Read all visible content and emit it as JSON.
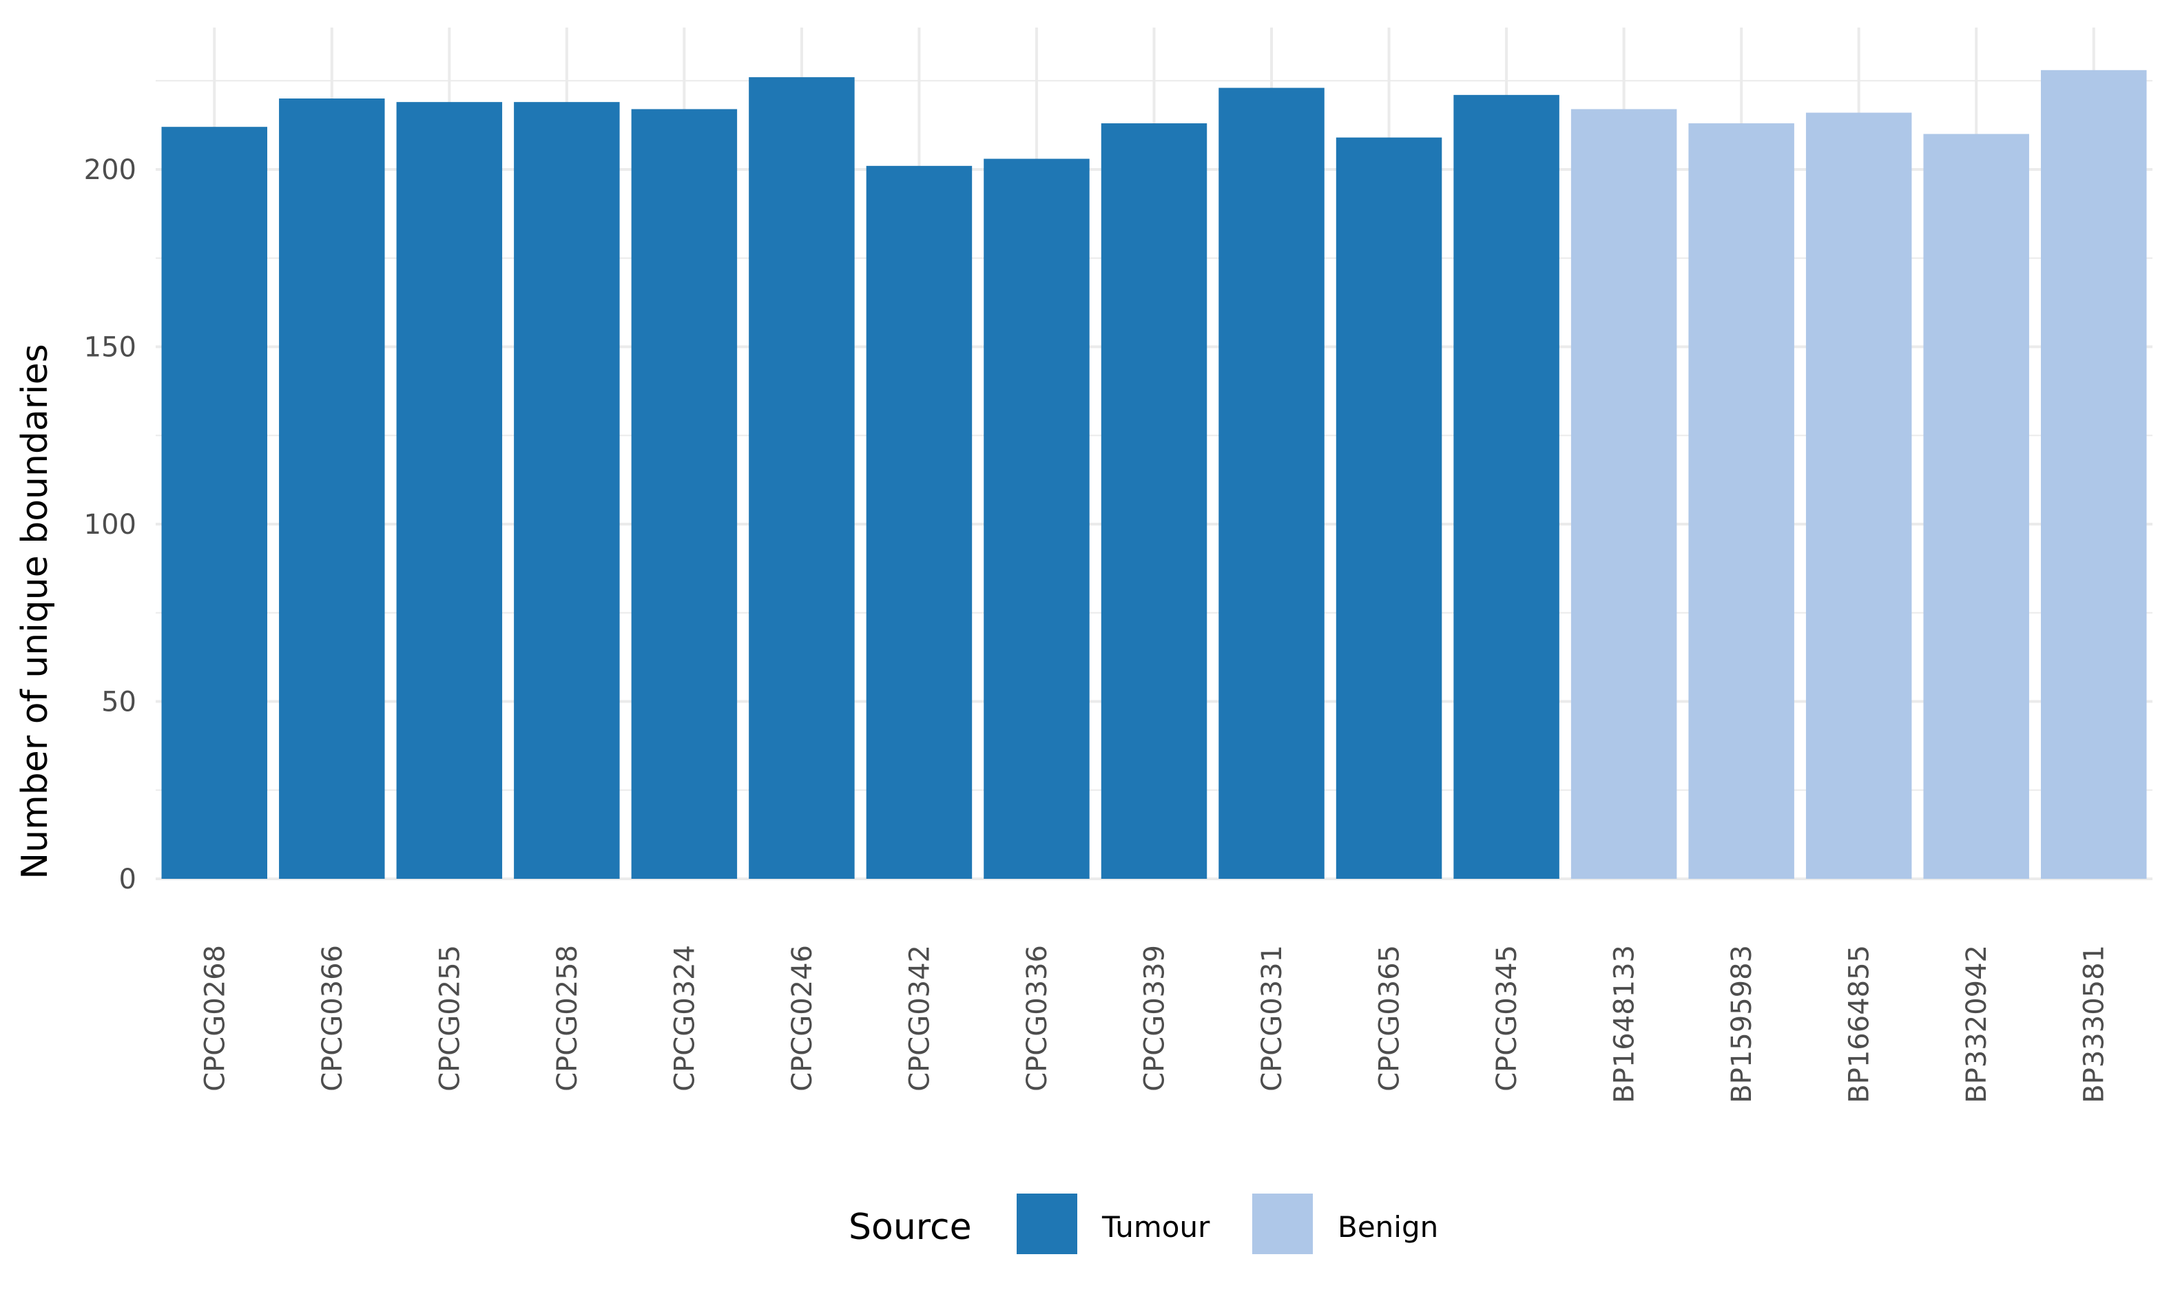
{
  "chart_data": {
    "type": "bar",
    "title": "",
    "xlabel": "",
    "ylabel": "Number of unique boundaries",
    "ylim": [
      0,
      240
    ],
    "yticks": [
      0,
      50,
      100,
      150,
      200
    ],
    "grid": true,
    "legend_position": "bottom",
    "categories": [
      "CPCG0268",
      "CPCG0366",
      "CPCG0255",
      "CPCG0258",
      "CPCG0324",
      "CPCG0246",
      "CPCG0342",
      "CPCG0336",
      "CPCG0339",
      "CPCG0331",
      "CPCG0365",
      "CPCG0345",
      "BP1648133",
      "BP1595983",
      "BP1664855",
      "BP3320942",
      "BP3330581"
    ],
    "values": [
      212,
      220,
      219,
      219,
      217,
      226,
      201,
      203,
      213,
      223,
      209,
      221,
      217,
      213,
      216,
      210,
      228
    ],
    "groups": [
      "Tumour",
      "Tumour",
      "Tumour",
      "Tumour",
      "Tumour",
      "Tumour",
      "Tumour",
      "Tumour",
      "Tumour",
      "Tumour",
      "Tumour",
      "Tumour",
      "Benign",
      "Benign",
      "Benign",
      "Benign",
      "Benign"
    ],
    "legend": {
      "title": "Source",
      "entries": [
        {
          "name": "Tumour",
          "color": "#1f77b4"
        },
        {
          "name": "Benign",
          "color": "#aec7e8"
        }
      ]
    }
  }
}
